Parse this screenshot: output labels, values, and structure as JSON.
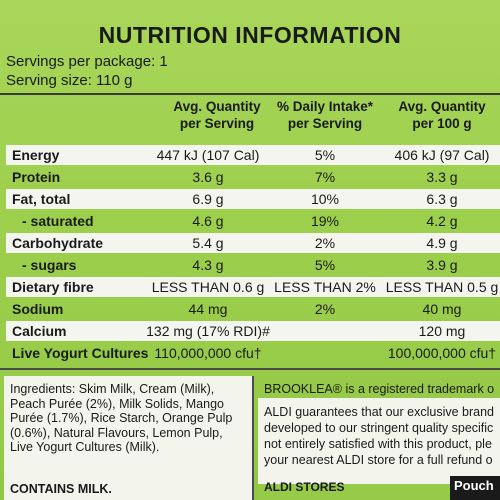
{
  "title": "NUTRITION INFORMATION",
  "servings_per_package": "Servings per package: 1",
  "serving_size": "Serving size: 110 g",
  "headers": {
    "col1_line1": "Avg. Quantity",
    "col1_line2": "per Serving",
    "col2_line1": "% Daily Intake*",
    "col2_line2": "per Serving",
    "col3_line1": "Avg. Quantity",
    "col3_line2": "per 100 g"
  },
  "rows": [
    {
      "label": "Energy",
      "per_serving": "447 kJ (107 Cal)",
      "daily_intake": "5%",
      "per_100g": "406 kJ (97 Cal)"
    },
    {
      "label": "Protein",
      "per_serving": "3.6 g",
      "daily_intake": "7%",
      "per_100g": "3.3 g"
    },
    {
      "label": "Fat, total",
      "per_serving": "6.9 g",
      "daily_intake": "10%",
      "per_100g": "6.3 g"
    },
    {
      "label": "- saturated",
      "per_serving": "4.6 g",
      "daily_intake": "19%",
      "per_100g": "4.2 g"
    },
    {
      "label": "Carbohydrate",
      "per_serving": "5.4 g",
      "daily_intake": "2%",
      "per_100g": "4.9 g"
    },
    {
      "label": "- sugars",
      "per_serving": "4.3 g",
      "daily_intake": "5%",
      "per_100g": "3.9 g"
    },
    {
      "label": "Dietary fibre",
      "per_serving": "LESS THAN 0.6 g",
      "daily_intake": "LESS THAN 2%",
      "per_100g": "LESS THAN 0.5 g"
    },
    {
      "label": "Sodium",
      "per_serving": "44 mg",
      "daily_intake": "2%",
      "per_100g": "40 mg"
    },
    {
      "label": "Calcium",
      "per_serving": "132 mg (17% RDI)#",
      "daily_intake": "",
      "per_100g": "120 mg"
    },
    {
      "label": "Live Yogurt Cultures",
      "per_serving": "110,000,000 cfu†",
      "daily_intake": "",
      "per_100g": "100,000,000 cfu†"
    }
  ],
  "ingredients": {
    "text": "Ingredients: Skim Milk, Cream (Milk), Peach Purée (2%), Milk Solids, Mango Purée (1.7%), Rice Starch, Orange Pulp (0.6%), Natural Flavours, Lemon Pulp, Live Yogurt Cultures (Milk).",
    "contains": "CONTAINS MILK."
  },
  "brand": {
    "line1": "BROOKLEA® is a registered trademark o",
    "para_lines": [
      "ALDI guarantees that our exclusive brand",
      "developed to our stringent quality specific",
      "not entirely satisfied with this product, ple",
      "your nearest ALDI store for a full refund o"
    ],
    "stores": "ALDI STORES",
    "tag": "Pouch"
  },
  "colors": {
    "background_green": "#9ccf4c",
    "row_white": "#f4f5ef",
    "text": "#1a1a1a"
  }
}
